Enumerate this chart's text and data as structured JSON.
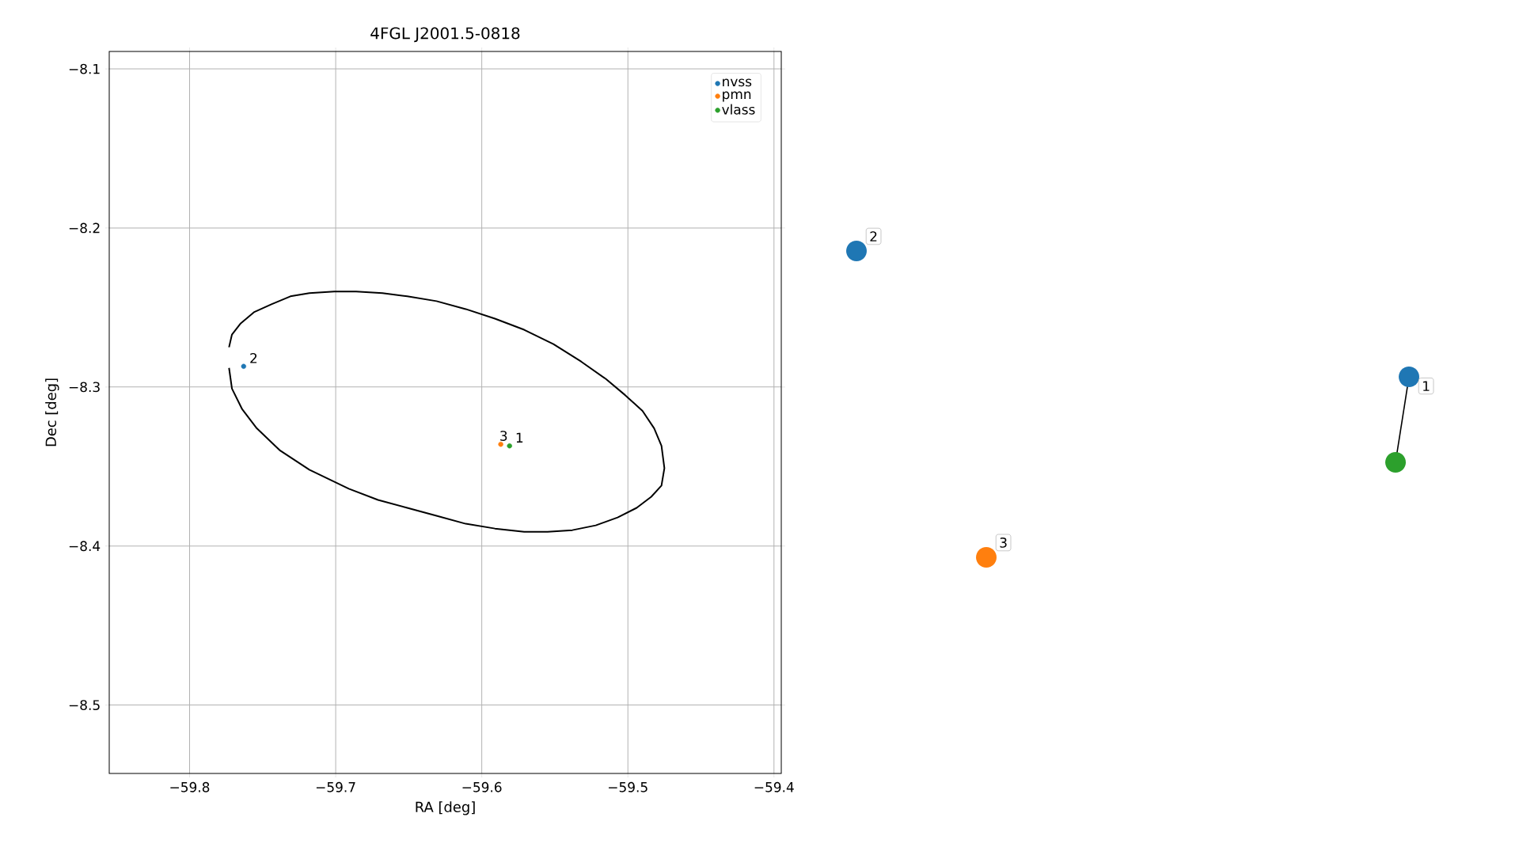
{
  "chart_data": [
    {
      "type": "scatter",
      "title": "4FGL J2001.5-0818",
      "xlabel": "RA [deg]",
      "ylabel": "Dec [deg]",
      "xlim": [
        -59.855,
        -59.395
      ],
      "ylim": [
        -8.543,
        -8.089
      ],
      "xticks": [
        {
          "value": -59.8,
          "label": "−59.8"
        },
        {
          "value": -59.7,
          "label": "−59.7"
        },
        {
          "value": -59.6,
          "label": "−59.6"
        },
        {
          "value": -59.5,
          "label": "−59.5"
        },
        {
          "value": -59.4,
          "label": "−59.4"
        }
      ],
      "yticks": [
        {
          "value": -8.5,
          "label": "−8.5"
        },
        {
          "value": -8.4,
          "label": "−8.4"
        },
        {
          "value": -8.3,
          "label": "−8.3"
        },
        {
          "value": -8.2,
          "label": "−8.2"
        },
        {
          "value": -8.1,
          "label": "−8.1"
        }
      ],
      "grid": true,
      "legend": "top right",
      "marker": "circle",
      "series": [
        {
          "name": "nvss",
          "color": "#1f77b4",
          "x": [
            -59.763
          ],
          "values": [
            -8.287
          ]
        },
        {
          "name": "pmn",
          "color": "#ff7f0e",
          "x": [
            -59.587
          ],
          "values": [
            -8.336
          ]
        },
        {
          "name": "vlass",
          "color": "#2ca02c",
          "x": [
            -59.581
          ],
          "values": [
            -8.337
          ]
        },
        {
          "type": "line",
          "color": "#000000",
          "marker": "none",
          "x": [
            -59.773,
            -59.771,
            -59.765,
            -59.756,
            -59.744,
            -59.731,
            -59.718,
            -59.701,
            -59.686,
            -59.668,
            -59.651,
            -59.631,
            -59.611,
            -59.591,
            -59.571,
            -59.551,
            -59.532,
            -59.515,
            -59.502,
            -59.49,
            -59.482,
            -59.477,
            -59.475,
            -59.477,
            -59.484,
            -59.494,
            -59.507,
            -59.522,
            -59.538,
            -59.555,
            -59.571,
            -59.591,
            -59.611,
            -59.631,
            -59.651,
            -59.671,
            -59.691,
            -59.718,
            -59.738,
            -59.754,
            -59.764,
            -59.771,
            -59.773
          ],
          "values": [
            -8.275,
            -8.267,
            -8.26,
            -8.253,
            -8.248,
            -8.243,
            -8.241,
            -8.24,
            -8.24,
            -8.241,
            -8.243,
            -8.246,
            -8.251,
            -8.257,
            -8.264,
            -8.273,
            -8.284,
            -8.295,
            -8.305,
            -8.315,
            -8.326,
            -8.337,
            -8.351,
            -8.362,
            -8.369,
            -8.376,
            -8.382,
            -8.387,
            -8.39,
            -8.391,
            -8.391,
            -8.389,
            -8.386,
            -8.381,
            -8.376,
            -8.371,
            -8.364,
            -8.352,
            -8.34,
            -8.326,
            -8.314,
            -8.301,
            -8.288
          ]
        }
      ],
      "annotations": [
        {
          "text": "2",
          "x": -59.763,
          "y": -8.287
        },
        {
          "text": "3",
          "x": -59.587,
          "y": -8.336
        },
        {
          "text": "1",
          "x": -59.581,
          "y": -8.337
        }
      ]
    },
    {
      "type": "other",
      "annotations": [
        "2",
        "1",
        "3"
      ]
    }
  ]
}
